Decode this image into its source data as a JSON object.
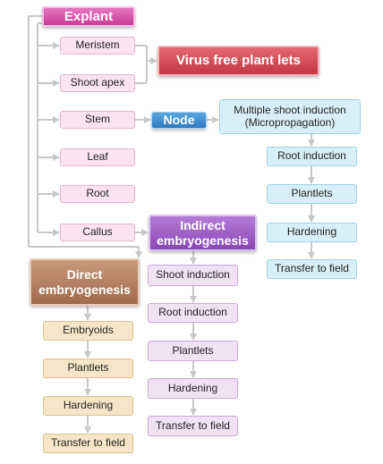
{
  "explant": "Explant",
  "explant_sources": [
    "Meristem",
    "Shoot apex",
    "Stem",
    "Leaf",
    "Root",
    "Callus"
  ],
  "virus_free": "Virus free plant lets",
  "node": "Node",
  "multiple_shoot": {
    "line1": "Multiple shoot induction",
    "line2": "(Micropropagation)"
  },
  "micro_steps": [
    "Root induction",
    "Plantlets",
    "Hardening",
    "Transfer to field"
  ],
  "indirect": {
    "line1": "Indirect",
    "line2": "embryogenesis"
  },
  "indirect_steps": [
    "Shoot induction",
    "Root induction",
    "Plantlets",
    "Hardening",
    "Transfer to field"
  ],
  "direct": {
    "line1": "Direct",
    "line2": "embryogenesis"
  },
  "direct_steps": [
    "Embryoids",
    "Plantlets",
    "Hardening",
    "Transfer to field"
  ]
}
